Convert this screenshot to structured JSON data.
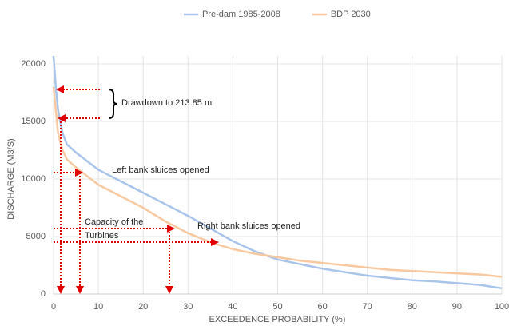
{
  "chart_data": {
    "type": "line",
    "xlabel": "EXCEEDENCE PROBABILITY (%)",
    "ylabel": "DISCHARGE (M3/S)",
    "x": [
      0,
      0.5,
      1,
      2,
      3,
      5,
      10,
      15,
      20,
      25,
      30,
      35,
      40,
      45,
      50,
      55,
      60,
      65,
      70,
      75,
      80,
      85,
      90,
      95,
      100
    ],
    "series": [
      {
        "name": "Pre-dam 1985-2008",
        "color": "#a9c4ea",
        "values": [
          20700,
          18000,
          16000,
          14000,
          13000,
          12300,
          10800,
          9800,
          8800,
          7800,
          6800,
          5700,
          4600,
          3700,
          3000,
          2600,
          2200,
          1900,
          1600,
          1400,
          1200,
          1100,
          950,
          800,
          500
        ]
      },
      {
        "name": "BDP 2030",
        "color": "#f8c8a0",
        "values": [
          18000,
          16000,
          14000,
          12500,
          11700,
          11000,
          9500,
          8500,
          7500,
          6300,
          5300,
          4500,
          3900,
          3500,
          3200,
          2900,
          2700,
          2500,
          2300,
          2100,
          2000,
          1900,
          1800,
          1700,
          1500
        ]
      }
    ],
    "xlim": [
      0,
      100
    ],
    "xticks": [
      0,
      10,
      20,
      30,
      40,
      50,
      60,
      70,
      80,
      90,
      100
    ],
    "ylim": [
      0,
      20000
    ],
    "yticks": [
      0,
      5000,
      10000,
      15000,
      20000
    ],
    "grid": true,
    "legend": "top",
    "annotations": [
      "Drawdown to 213.85 m",
      "Left bank sluices opened",
      "Capacity of the",
      "Turbines",
      "Right bank sluices opened"
    ]
  }
}
